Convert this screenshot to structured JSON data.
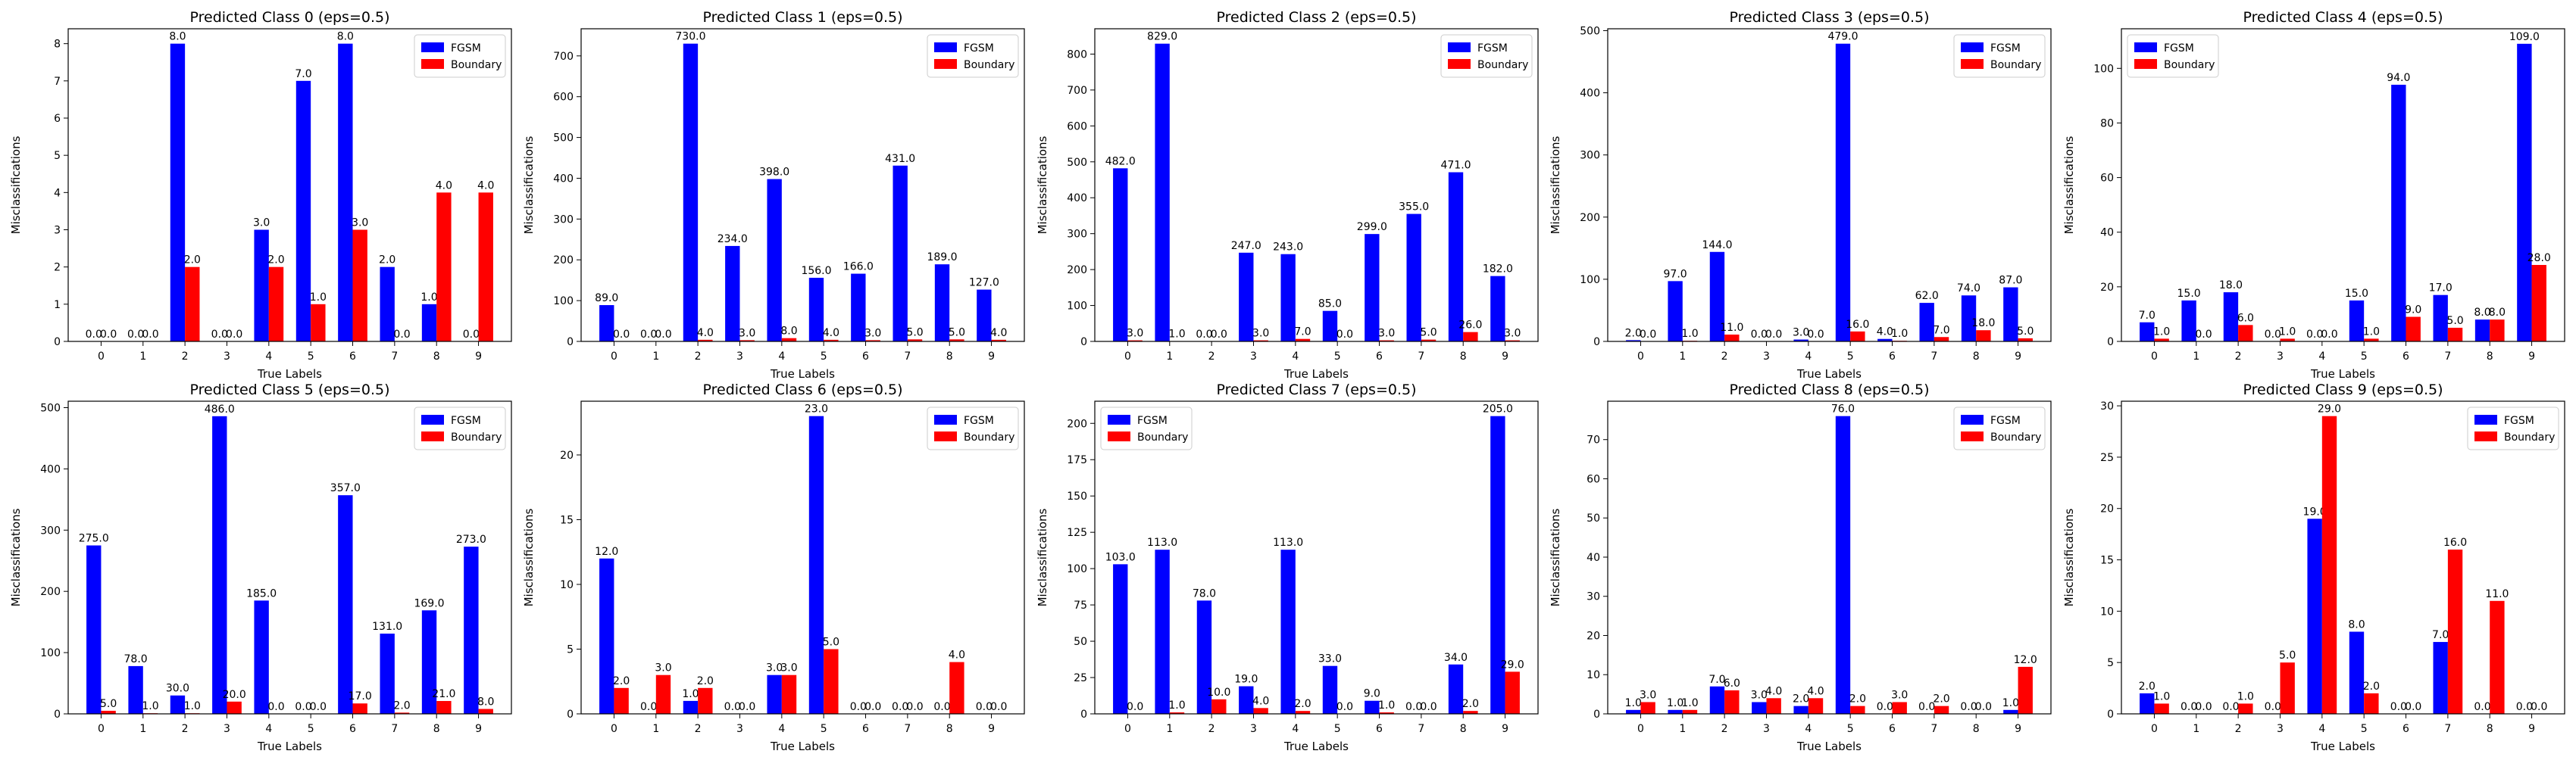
{
  "chart_data": [
    {
      "type": "bar",
      "title": "Predicted Class 0 (eps=0.5)",
      "xlabel": "True Labels",
      "ylabel": "Misclassifications",
      "categories": [
        "0",
        "1",
        "2",
        "3",
        "4",
        "5",
        "6",
        "7",
        "8",
        "9"
      ],
      "ylim": [
        0,
        8.4
      ],
      "yticks": [
        0,
        1,
        2,
        3,
        4,
        5,
        6,
        7,
        8
      ],
      "legend": "top-right",
      "series": [
        {
          "name": "FGSM",
          "color": "#0000ff",
          "values": [
            0,
            0,
            8,
            0,
            3,
            7,
            8,
            2,
            1,
            0
          ]
        },
        {
          "name": "Boundary",
          "color": "#ff0000",
          "values": [
            0,
            0,
            2,
            0,
            2,
            1,
            3,
            0,
            4,
            4
          ]
        }
      ],
      "labels": {
        "FGSM": [
          "0.0",
          "0.0",
          "8.0",
          "0.0",
          "3.0",
          "7.0",
          "8.0",
          "2.0",
          "1.0",
          "0.0"
        ],
        "Boundary": [
          "0.0",
          "0.0",
          "2.0",
          "0.0",
          "2.0",
          "1.0",
          "3.0",
          "0.0",
          "4.0",
          "4.0"
        ]
      }
    },
    {
      "type": "bar",
      "title": "Predicted Class 1 (eps=0.5)",
      "xlabel": "True Labels",
      "ylabel": "Misclassifications",
      "categories": [
        "0",
        "1",
        "2",
        "3",
        "4",
        "5",
        "6",
        "7",
        "8",
        "9"
      ],
      "ylim": [
        0,
        766.5
      ],
      "yticks": [
        0,
        100,
        200,
        300,
        400,
        500,
        600,
        700
      ],
      "legend": "top-right",
      "series": [
        {
          "name": "FGSM",
          "color": "#0000ff",
          "values": [
            89,
            0,
            730,
            234,
            398,
            156,
            166,
            431,
            189,
            127
          ]
        },
        {
          "name": "Boundary",
          "color": "#ff0000",
          "values": [
            0,
            0,
            4,
            3,
            8,
            4,
            3,
            5,
            5,
            4
          ]
        }
      ],
      "labels": {
        "FGSM": [
          "89.0",
          "0.0",
          "730.0",
          "234.0",
          "398.0",
          "156.0",
          "166.0",
          "431.0",
          "189.0",
          "127.0"
        ],
        "Boundary": [
          "0.0",
          "0.0",
          "4.0",
          "3.0",
          "8.0",
          "4.0",
          "3.0",
          "5.0",
          "5.0",
          "4.0"
        ]
      }
    },
    {
      "type": "bar",
      "title": "Predicted Class 2 (eps=0.5)",
      "xlabel": "True Labels",
      "ylabel": "Misclassifications",
      "categories": [
        "0",
        "1",
        "2",
        "3",
        "4",
        "5",
        "6",
        "7",
        "8",
        "9"
      ],
      "ylim": [
        0,
        870.5
      ],
      "yticks": [
        0,
        100,
        200,
        300,
        400,
        500,
        600,
        700,
        800
      ],
      "legend": "top-right",
      "series": [
        {
          "name": "FGSM",
          "color": "#0000ff",
          "values": [
            482,
            829,
            0,
            247,
            243,
            85,
            299,
            355,
            471,
            182
          ]
        },
        {
          "name": "Boundary",
          "color": "#ff0000",
          "values": [
            3,
            1,
            0,
            3,
            7,
            0,
            3,
            5,
            26,
            3
          ]
        }
      ],
      "labels": {
        "FGSM": [
          "482.0",
          "829.0",
          "0.0",
          "247.0",
          "243.0",
          "85.0",
          "299.0",
          "355.0",
          "471.0",
          "182.0"
        ],
        "Boundary": [
          "3.0",
          "1.0",
          "0.0",
          "3.0",
          "7.0",
          "0.0",
          "3.0",
          "5.0",
          "26.0",
          "3.0"
        ]
      }
    },
    {
      "type": "bar",
      "title": "Predicted Class 3 (eps=0.5)",
      "xlabel": "True Labels",
      "ylabel": "Misclassifications",
      "categories": [
        "0",
        "1",
        "2",
        "3",
        "4",
        "5",
        "6",
        "7",
        "8",
        "9"
      ],
      "ylim": [
        0,
        503
      ],
      "yticks": [
        0,
        100,
        200,
        300,
        400,
        500
      ],
      "legend": "top-right",
      "series": [
        {
          "name": "FGSM",
          "color": "#0000ff",
          "values": [
            2,
            97,
            144,
            0,
            3,
            479,
            4,
            62,
            74,
            87
          ]
        },
        {
          "name": "Boundary",
          "color": "#ff0000",
          "values": [
            0,
            1,
            11,
            0,
            0,
            16,
            1,
            7,
            18,
            5
          ]
        }
      ],
      "labels": {
        "FGSM": [
          "2.0",
          "97.0",
          "144.0",
          "0.0",
          "3.0",
          "479.0",
          "4.0",
          "62.0",
          "74.0",
          "87.0"
        ],
        "Boundary": [
          "0.0",
          "1.0",
          "11.0",
          "0.0",
          "0.0",
          "16.0",
          "1.0",
          "7.0",
          "18.0",
          "5.0"
        ]
      }
    },
    {
      "type": "bar",
      "title": "Predicted Class 4 (eps=0.5)",
      "xlabel": "True Labels",
      "ylabel": "Misclassifications",
      "categories": [
        "0",
        "1",
        "2",
        "3",
        "4",
        "5",
        "6",
        "7",
        "8",
        "9"
      ],
      "ylim": [
        0,
        114.5
      ],
      "yticks": [
        0,
        20,
        40,
        60,
        80,
        100
      ],
      "legend": "top-left",
      "series": [
        {
          "name": "FGSM",
          "color": "#0000ff",
          "values": [
            7,
            15,
            18,
            0,
            0,
            15,
            94,
            17,
            8,
            109
          ]
        },
        {
          "name": "Boundary",
          "color": "#ff0000",
          "values": [
            1,
            0,
            6,
            1,
            0,
            1,
            9,
            5,
            8,
            28
          ]
        }
      ],
      "labels": {
        "FGSM": [
          "7.0",
          "15.0",
          "18.0",
          "0.0",
          "0.0",
          "15.0",
          "94.0",
          "17.0",
          "8.0",
          "109.0"
        ],
        "Boundary": [
          "1.0",
          "0.0",
          "6.0",
          "1.0",
          "0.0",
          "1.0",
          "9.0",
          "5.0",
          "8.0",
          "28.0"
        ]
      }
    },
    {
      "type": "bar",
      "title": "Predicted Class 5 (eps=0.5)",
      "xlabel": "True Labels",
      "ylabel": "Misclassifications",
      "categories": [
        "0",
        "1",
        "2",
        "3",
        "4",
        "5",
        "6",
        "7",
        "8",
        "9"
      ],
      "ylim": [
        0,
        510.5
      ],
      "yticks": [
        0,
        100,
        200,
        300,
        400,
        500
      ],
      "legend": "top-right",
      "series": [
        {
          "name": "FGSM",
          "color": "#0000ff",
          "values": [
            275,
            78,
            30,
            486,
            185,
            0,
            357,
            131,
            169,
            273
          ]
        },
        {
          "name": "Boundary",
          "color": "#ff0000",
          "values": [
            5,
            1,
            1,
            20,
            0,
            0,
            17,
            2,
            21,
            8
          ]
        }
      ],
      "labels": {
        "FGSM": [
          "275.0",
          "78.0",
          "30.0",
          "486.0",
          "185.0",
          "0.0",
          "357.0",
          "131.0",
          "169.0",
          "273.0"
        ],
        "Boundary": [
          "5.0",
          "1.0",
          "1.0",
          "20.0",
          "0.0",
          "0.0",
          "17.0",
          "2.0",
          "21.0",
          "8.0"
        ]
      }
    },
    {
      "type": "bar",
      "title": "Predicted Class 6 (eps=0.5)",
      "xlabel": "True Labels",
      "ylabel": "Misclassifications",
      "categories": [
        "0",
        "1",
        "2",
        "3",
        "4",
        "5",
        "6",
        "7",
        "8",
        "9"
      ],
      "ylim": [
        0,
        24.15
      ],
      "yticks": [
        0,
        5,
        10,
        15,
        20
      ],
      "legend": "top-right",
      "series": [
        {
          "name": "FGSM",
          "color": "#0000ff",
          "values": [
            12,
            0,
            1,
            0,
            3,
            23,
            0,
            0,
            0,
            0
          ]
        },
        {
          "name": "Boundary",
          "color": "#ff0000",
          "values": [
            2,
            3,
            2,
            0,
            3,
            5,
            0,
            0,
            4,
            0
          ]
        }
      ],
      "labels": {
        "FGSM": [
          "12.0",
          "0.0",
          "1.0",
          "0.0",
          "3.0",
          "23.0",
          "0.0",
          "0.0",
          "0.0",
          "0.0"
        ],
        "Boundary": [
          "2.0",
          "3.0",
          "2.0",
          "0.0",
          "3.0",
          "5.0",
          "0.0",
          "0.0",
          "4.0",
          "0.0"
        ]
      }
    },
    {
      "type": "bar",
      "title": "Predicted Class 7 (eps=0.5)",
      "xlabel": "True Labels",
      "ylabel": "Misclassifications",
      "categories": [
        "0",
        "1",
        "2",
        "3",
        "4",
        "5",
        "6",
        "7",
        "8",
        "9"
      ],
      "ylim": [
        0,
        215.25
      ],
      "yticks": [
        0,
        25,
        50,
        75,
        100,
        125,
        150,
        175,
        200
      ],
      "legend": "top-left",
      "series": [
        {
          "name": "FGSM",
          "color": "#0000ff",
          "values": [
            103,
            113,
            78,
            19,
            113,
            33,
            9,
            0,
            34,
            205
          ]
        },
        {
          "name": "Boundary",
          "color": "#ff0000",
          "values": [
            0,
            1,
            10,
            4,
            2,
            0,
            1,
            0,
            2,
            29
          ]
        }
      ],
      "labels": {
        "FGSM": [
          "103.0",
          "113.0",
          "78.0",
          "19.0",
          "113.0",
          "33.0",
          "9.0",
          "0.0",
          "34.0",
          "205.0"
        ],
        "Boundary": [
          "0.0",
          "1.0",
          "10.0",
          "4.0",
          "2.0",
          "0.0",
          "1.0",
          "0.0",
          "2.0",
          "29.0"
        ]
      }
    },
    {
      "type": "bar",
      "title": "Predicted Class 8 (eps=0.5)",
      "xlabel": "True Labels",
      "ylabel": "Misclassifications",
      "categories": [
        "0",
        "1",
        "2",
        "3",
        "4",
        "5",
        "6",
        "7",
        "8",
        "9"
      ],
      "ylim": [
        0,
        79.8
      ],
      "yticks": [
        0,
        10,
        20,
        30,
        40,
        50,
        60,
        70
      ],
      "legend": "top-right",
      "series": [
        {
          "name": "FGSM",
          "color": "#0000ff",
          "values": [
            1,
            1,
            7,
            3,
            2,
            76,
            0,
            0,
            0,
            1
          ]
        },
        {
          "name": "Boundary",
          "color": "#ff0000",
          "values": [
            3,
            1,
            6,
            4,
            4,
            2,
            3,
            2,
            0,
            12
          ]
        }
      ],
      "labels": {
        "FGSM": [
          "1.0",
          "1.0",
          "7.0",
          "3.0",
          "2.0",
          "76.0",
          "0.0",
          "0.0",
          "0.0",
          "1.0"
        ],
        "Boundary": [
          "3.0",
          "1.0",
          "6.0",
          "4.0",
          "4.0",
          "2.0",
          "3.0",
          "2.0",
          "0.0",
          "12.0"
        ]
      }
    },
    {
      "type": "bar",
      "title": "Predicted Class 9 (eps=0.5)",
      "xlabel": "True Labels",
      "ylabel": "Misclassifications",
      "categories": [
        "0",
        "1",
        "2",
        "3",
        "4",
        "5",
        "6",
        "7",
        "8",
        "9"
      ],
      "ylim": [
        0,
        30.45
      ],
      "yticks": [
        0,
        5,
        10,
        15,
        20,
        25,
        30
      ],
      "legend": "top-right",
      "series": [
        {
          "name": "FGSM",
          "color": "#0000ff",
          "values": [
            2,
            0,
            0,
            0,
            19,
            8,
            0,
            7,
            0,
            0
          ]
        },
        {
          "name": "Boundary",
          "color": "#ff0000",
          "values": [
            1,
            0,
            1,
            5,
            29,
            2,
            0,
            16,
            11,
            0
          ]
        }
      ],
      "labels": {
        "FGSM": [
          "2.0",
          "0.0",
          "0.0",
          "0.0",
          "19.0",
          "8.0",
          "0.0",
          "7.0",
          "0.0",
          "0.0"
        ],
        "Boundary": [
          "1.0",
          "0.0",
          "1.0",
          "5.0",
          "29.0",
          "2.0",
          "0.0",
          "16.0",
          "11.0",
          "0.0"
        ]
      }
    }
  ]
}
